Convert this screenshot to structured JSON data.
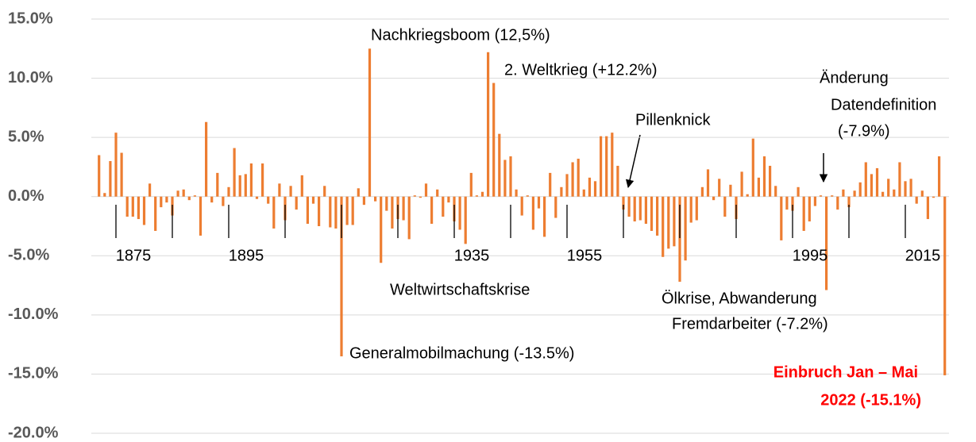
{
  "chart_data": {
    "type": "bar",
    "categories": [
      null,
      null,
      null,
      "1875",
      null,
      null,
      null,
      null,
      null,
      null,
      null,
      null,
      null,
      null,
      null,
      null,
      null,
      null,
      null,
      null,
      null,
      null,
      null,
      "1895",
      null,
      null,
      null,
      null,
      null,
      null,
      null,
      null,
      null,
      null,
      null,
      null,
      null,
      null,
      null,
      null,
      null,
      null,
      null,
      null,
      null,
      null,
      null,
      null,
      null,
      null,
      null,
      null,
      null,
      null,
      null,
      null,
      null,
      null,
      null,
      null,
      null,
      null,
      null,
      "1935",
      null,
      null,
      null,
      null,
      null,
      null,
      null,
      null,
      null,
      null,
      null,
      null,
      null,
      null,
      null,
      null,
      null,
      null,
      null,
      "1955",
      null,
      null,
      null,
      null,
      null,
      null,
      null,
      null,
      null,
      null,
      null,
      null,
      null,
      null,
      null,
      null,
      null,
      null,
      null,
      null,
      null,
      null,
      null,
      null,
      null,
      null,
      null,
      null,
      null,
      null,
      null,
      null,
      null,
      null,
      null,
      null,
      null,
      null,
      null,
      "1995",
      null,
      null,
      null,
      null,
      null,
      null,
      null,
      null,
      null,
      null,
      null,
      null,
      null,
      null,
      null,
      null,
      null,
      null,
      null,
      "2015",
      null,
      null,
      null,
      null,
      null,
      null,
      null
    ],
    "values": [
      3.5,
      0.3,
      3.0,
      5.4,
      3.7,
      -1.7,
      -1.7,
      -1.9,
      -2.4,
      1.1,
      -2.9,
      -0.9,
      -0.5,
      -1.6,
      0.5,
      0.6,
      -0.3,
      0.1,
      -3.3,
      6.3,
      -0.5,
      2.0,
      -0.8,
      0.8,
      4.1,
      1.8,
      1.9,
      2.8,
      -0.2,
      2.8,
      -0.6,
      -2.7,
      1.1,
      -2.0,
      0.9,
      -1.1,
      1.8,
      -2.3,
      -0.6,
      -2.5,
      0.9,
      -2.6,
      -2.7,
      -13.5,
      -2.4,
      -2.4,
      0.7,
      -0.7,
      12.5,
      -0.4,
      -5.6,
      -1.2,
      -2.7,
      -1.9,
      -2.0,
      -3.6,
      0.1,
      -0.1,
      1.1,
      -2.3,
      0.6,
      -1.7,
      -0.5,
      -2.1,
      -2.8,
      -4.0,
      2.0,
      0.1,
      0.4,
      12.2,
      9.6,
      5.3,
      3.1,
      3.4,
      0.6,
      -1.6,
      0.1,
      -2.8,
      -1.0,
      -3.4,
      2.0,
      -1.8,
      0.8,
      1.9,
      2.9,
      3.2,
      0.6,
      1.6,
      1.3,
      5.1,
      5.1,
      5.4,
      2.6,
      -1.1,
      -1.7,
      -2.1,
      -2.0,
      -2.3,
      -2.9,
      -3.3,
      -5.1,
      -4.4,
      -4.2,
      -7.2,
      -5.4,
      -2.2,
      -2.0,
      0.8,
      2.3,
      -0.3,
      1.5,
      -1.7,
      1.0,
      -1.9,
      2.1,
      0.2,
      4.9,
      1.6,
      3.4,
      2.6,
      0.9,
      -3.7,
      -1.1,
      -1.2,
      0.8,
      -2.9,
      -2.1,
      -0.8,
      0.1,
      -7.9,
      0.1,
      -1.1,
      0.6,
      -0.9,
      0.5,
      1.2,
      2.9,
      1.9,
      2.4,
      0.4,
      1.5,
      0.6,
      2.9,
      1.3,
      1.5,
      -0.6,
      0.5,
      -1.9,
      -0.1,
      3.4,
      -15.1
    ],
    "color": "#ed7d31",
    "ylim": [
      -20,
      15
    ],
    "yticks": [
      {
        "value": -20,
        "label": "-20.0%"
      },
      {
        "value": -15,
        "label": "-15.0%"
      },
      {
        "value": -10,
        "label": "-10.0%"
      },
      {
        "value": -5,
        "label": "-5.0%"
      },
      {
        "value": 0,
        "label": "0.0%"
      },
      {
        "value": 5,
        "label": "5.0%"
      },
      {
        "value": 10,
        "label": "10.0%"
      },
      {
        "value": 15,
        "label": "15.0%"
      }
    ],
    "grid": true,
    "annotations": [
      [
        "Nachkriegsboom (12,5%)"
      ],
      [
        "2. Weltkrieg (+12.2%)"
      ],
      [
        "Pillenknick"
      ],
      [
        "Änderung",
        "Datendefinition",
        "(-7.9%)"
      ],
      [
        "Weltwirtschaftskrise"
      ],
      [
        "Ölkrise, Abwanderung",
        "Fremdarbeiter (-7.2%)"
      ],
      [
        "Generalmobilmachung (-13.5%)"
      ],
      [
        "Einbruch Jan – Mai",
        "2022 (-15.1%)"
      ]
    ]
  }
}
